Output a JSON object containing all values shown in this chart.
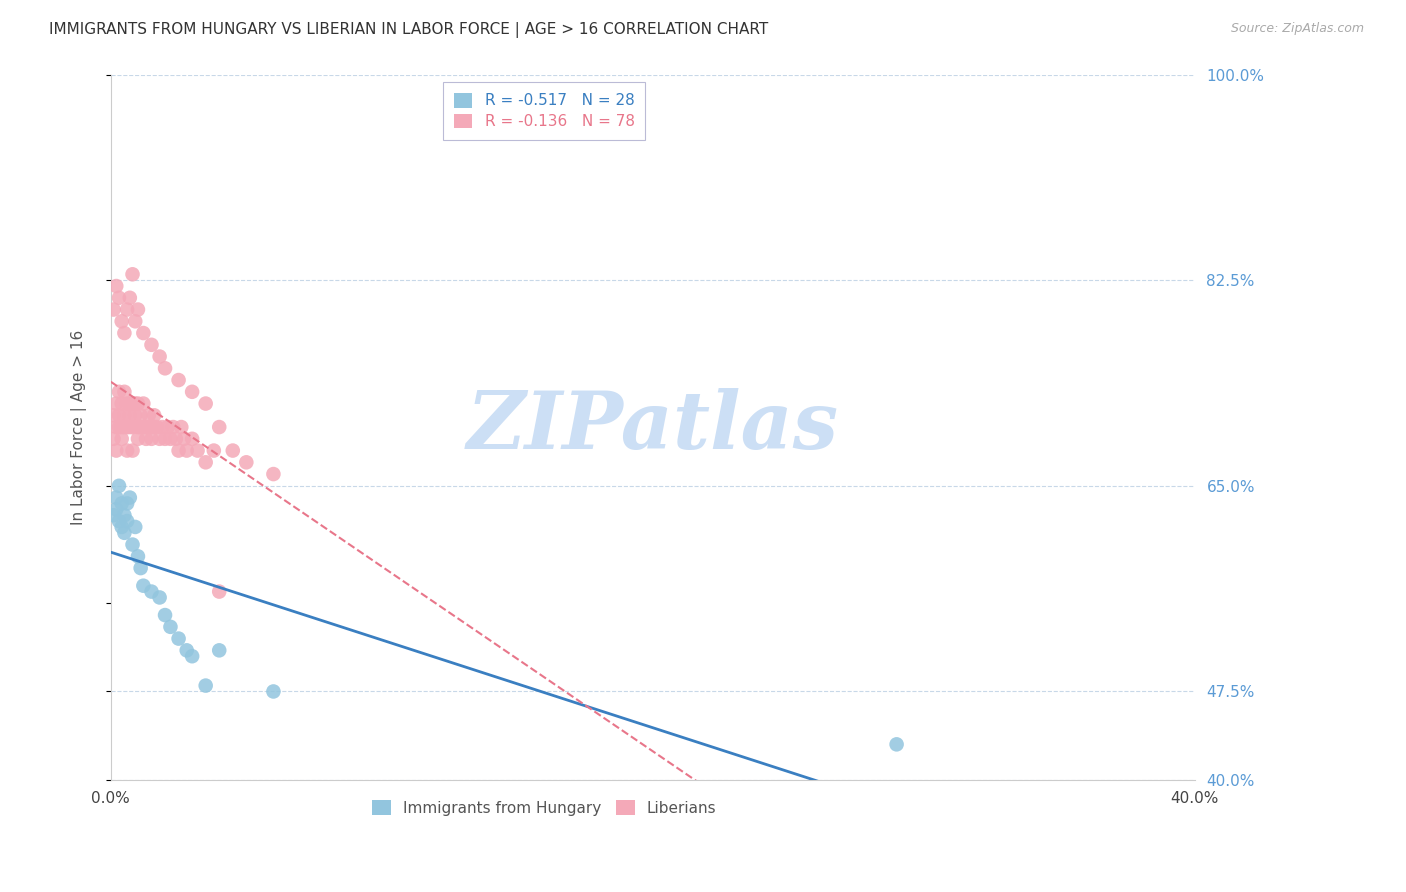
{
  "title": "IMMIGRANTS FROM HUNGARY VS LIBERIAN IN LABOR FORCE | AGE > 16 CORRELATION CHART",
  "source": "Source: ZipAtlas.com",
  "ylabel": "In Labor Force | Age > 16",
  "xlim": [
    0.0,
    0.4
  ],
  "ylim": [
    0.4,
    1.0
  ],
  "yticks_right": [
    0.4,
    0.475,
    0.55,
    0.65,
    0.825,
    1.0
  ],
  "ytick_labels_right": [
    "40.0%",
    "47.5%",
    "",
    "65.0%",
    "82.5%",
    "100.0%"
  ],
  "xticks": [
    0.0,
    0.05,
    0.1,
    0.15,
    0.2,
    0.25,
    0.3,
    0.35,
    0.4
  ],
  "xtick_labels": [
    "0.0%",
    "",
    "",
    "",
    "",
    "",
    "",
    "",
    "40.0%"
  ],
  "hungary_R": -0.517,
  "hungary_N": 28,
  "liberia_R": -0.136,
  "liberia_N": 78,
  "hungary_color": "#92c5de",
  "liberia_color": "#f4a9b8",
  "hungary_line_color": "#3a7fc1",
  "liberia_line_color": "#e8768a",
  "background_color": "#ffffff",
  "grid_color": "#c8d8e8",
  "watermark": "ZIPatlas",
  "watermark_color": "#ccdff5",
  "legend_label_hungary": "Immigrants from Hungary",
  "legend_label_liberia": "Liberians",
  "hungary_x": [
    0.001,
    0.002,
    0.002,
    0.003,
    0.003,
    0.004,
    0.004,
    0.005,
    0.005,
    0.006,
    0.006,
    0.007,
    0.008,
    0.009,
    0.01,
    0.011,
    0.012,
    0.015,
    0.018,
    0.02,
    0.022,
    0.025,
    0.028,
    0.03,
    0.035,
    0.04,
    0.06,
    0.29
  ],
  "hungary_y": [
    0.625,
    0.64,
    0.63,
    0.65,
    0.62,
    0.615,
    0.635,
    0.625,
    0.61,
    0.62,
    0.635,
    0.64,
    0.6,
    0.615,
    0.59,
    0.58,
    0.565,
    0.56,
    0.555,
    0.54,
    0.53,
    0.52,
    0.51,
    0.505,
    0.48,
    0.51,
    0.475,
    0.43
  ],
  "liberia_x": [
    0.001,
    0.001,
    0.002,
    0.002,
    0.002,
    0.003,
    0.003,
    0.003,
    0.004,
    0.004,
    0.004,
    0.005,
    0.005,
    0.005,
    0.006,
    0.006,
    0.006,
    0.007,
    0.007,
    0.007,
    0.008,
    0.008,
    0.008,
    0.009,
    0.009,
    0.01,
    0.01,
    0.01,
    0.011,
    0.011,
    0.012,
    0.012,
    0.013,
    0.013,
    0.014,
    0.014,
    0.015,
    0.015,
    0.016,
    0.016,
    0.017,
    0.018,
    0.019,
    0.02,
    0.021,
    0.022,
    0.023,
    0.024,
    0.025,
    0.026,
    0.027,
    0.028,
    0.03,
    0.032,
    0.035,
    0.038,
    0.04,
    0.045,
    0.05,
    0.06,
    0.001,
    0.002,
    0.003,
    0.004,
    0.005,
    0.006,
    0.007,
    0.008,
    0.009,
    0.01,
    0.012,
    0.015,
    0.018,
    0.02,
    0.025,
    0.03,
    0.035,
    0.04
  ],
  "liberia_y": [
    0.69,
    0.71,
    0.7,
    0.72,
    0.68,
    0.71,
    0.73,
    0.7,
    0.72,
    0.7,
    0.69,
    0.73,
    0.71,
    0.7,
    0.72,
    0.7,
    0.68,
    0.72,
    0.7,
    0.71,
    0.72,
    0.7,
    0.68,
    0.71,
    0.72,
    0.7,
    0.72,
    0.69,
    0.7,
    0.71,
    0.7,
    0.72,
    0.7,
    0.69,
    0.7,
    0.71,
    0.7,
    0.69,
    0.7,
    0.71,
    0.7,
    0.69,
    0.7,
    0.69,
    0.7,
    0.69,
    0.7,
    0.69,
    0.68,
    0.7,
    0.69,
    0.68,
    0.69,
    0.68,
    0.67,
    0.68,
    0.56,
    0.68,
    0.67,
    0.66,
    0.8,
    0.82,
    0.81,
    0.79,
    0.78,
    0.8,
    0.81,
    0.83,
    0.79,
    0.8,
    0.78,
    0.77,
    0.76,
    0.75,
    0.74,
    0.73,
    0.72,
    0.7
  ]
}
